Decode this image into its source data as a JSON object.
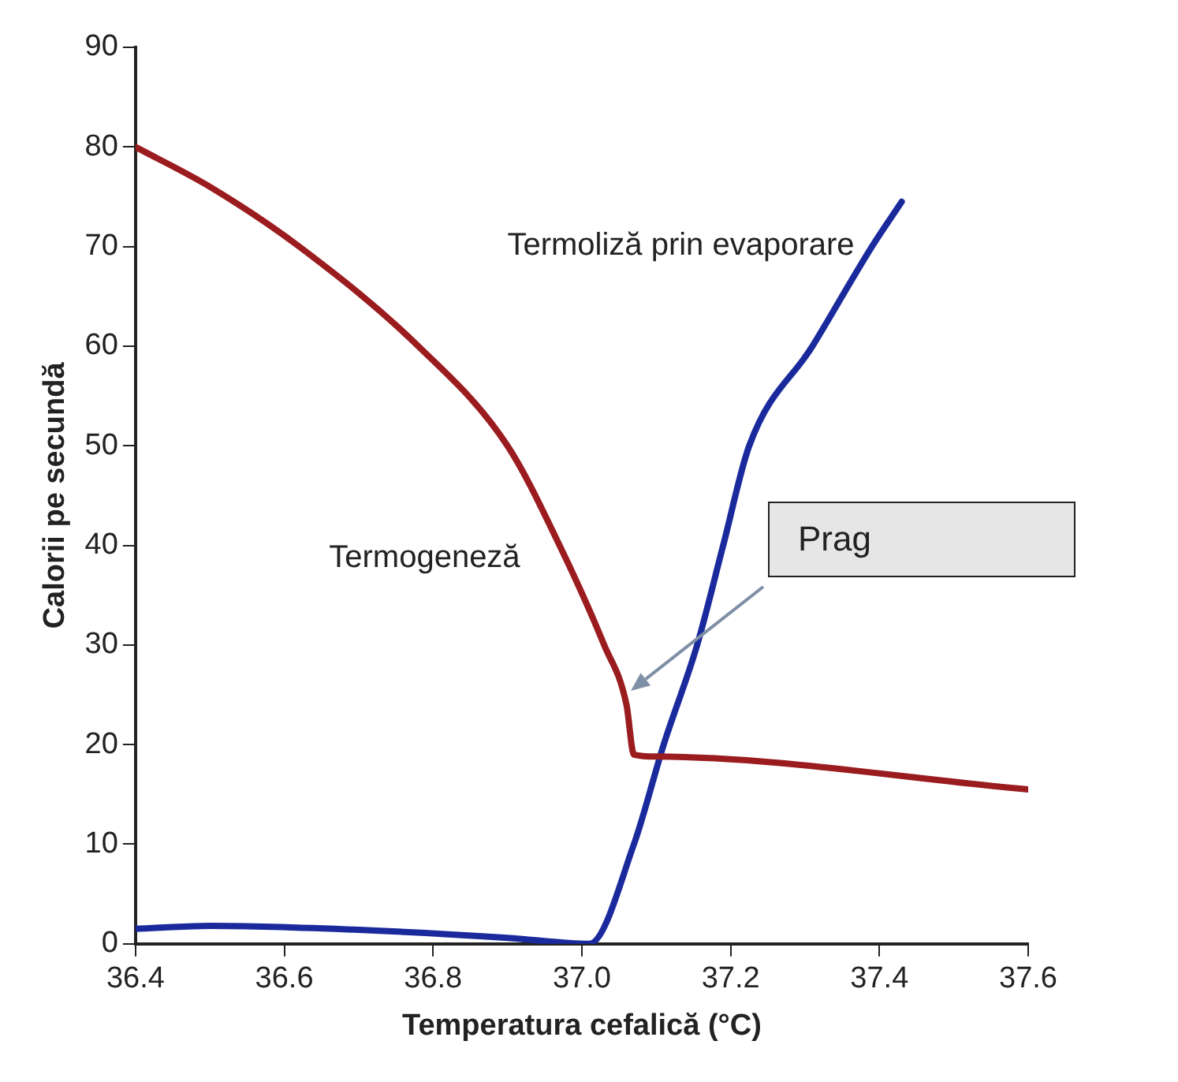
{
  "chart_data": {
    "type": "line",
    "xlabel": "Temperatura cefalică (°C)",
    "ylabel": "Calorii pe secundă",
    "xlim": [
      36.4,
      37.6
    ],
    "xticks": [
      36.4,
      36.6,
      36.8,
      {
        "value": 37.0,
        "label": "37.0"
      },
      37.2,
      37.4,
      37.6
    ],
    "ylim": [
      0,
      90
    ],
    "yticks": [
      0,
      10,
      20,
      30,
      40,
      50,
      60,
      70,
      80,
      90
    ],
    "grid": false,
    "legend": false,
    "marker": "none",
    "line_style": "solid",
    "series": [
      {
        "name": "Termogeneză",
        "color": "#9b1c1f",
        "x": [
          36.4,
          36.5,
          36.62,
          36.78,
          36.9,
          36.97,
          37.03,
          37.06,
          37.07,
          37.1,
          37.6
        ],
        "values": [
          80,
          76,
          70,
          60,
          50,
          40,
          30,
          24,
          19,
          18.8,
          15.5
        ]
      },
      {
        "name": "Termoliză prin evaporare",
        "color": "#1a2a9c",
        "x": [
          36.4,
          36.5,
          36.7,
          36.9,
          37.01,
          37.07,
          37.11,
          37.155,
          37.19,
          37.225,
          37.31,
          37.39,
          37.43
        ],
        "values": [
          1.5,
          1.8,
          1.4,
          0.6,
          0,
          10,
          20,
          30,
          40,
          50,
          60,
          70,
          74.5
        ]
      }
    ],
    "annotations": [
      "Prag"
    ]
  }
}
